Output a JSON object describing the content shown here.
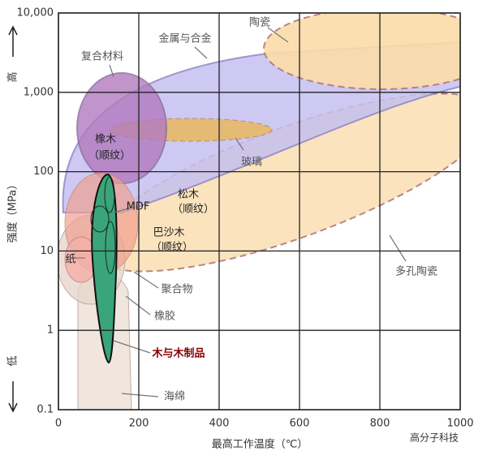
{
  "chart_data": {
    "type": "material-map",
    "y_label": "强度（MPa）",
    "y_high": "高",
    "y_low": "低",
    "x_label": "最高工作温度（℃）",
    "xlim": [
      0,
      1000
    ],
    "xticks": [
      0,
      200,
      400,
      600,
      800,
      1000
    ],
    "ylim": [
      0.1,
      10000
    ],
    "yticks": [
      {
        "value": 10000,
        "label": "10,000"
      },
      {
        "value": 1000,
        "label": "1,000"
      },
      100,
      10,
      1,
      0.1
    ],
    "log_y": true,
    "grid": true,
    "annotations": [
      "陶瓷",
      "金属与合金",
      "复合材料",
      "橡木",
      "（顺纹）",
      "玻璃",
      "MDF",
      "松木",
      "（顺纹）",
      "巴沙木",
      "（顺纹）",
      "纸",
      "聚合物",
      "橡胶",
      "多孔陶瓷",
      "木与木制品",
      "海绵"
    ],
    "watermark": "高分子科技"
  }
}
